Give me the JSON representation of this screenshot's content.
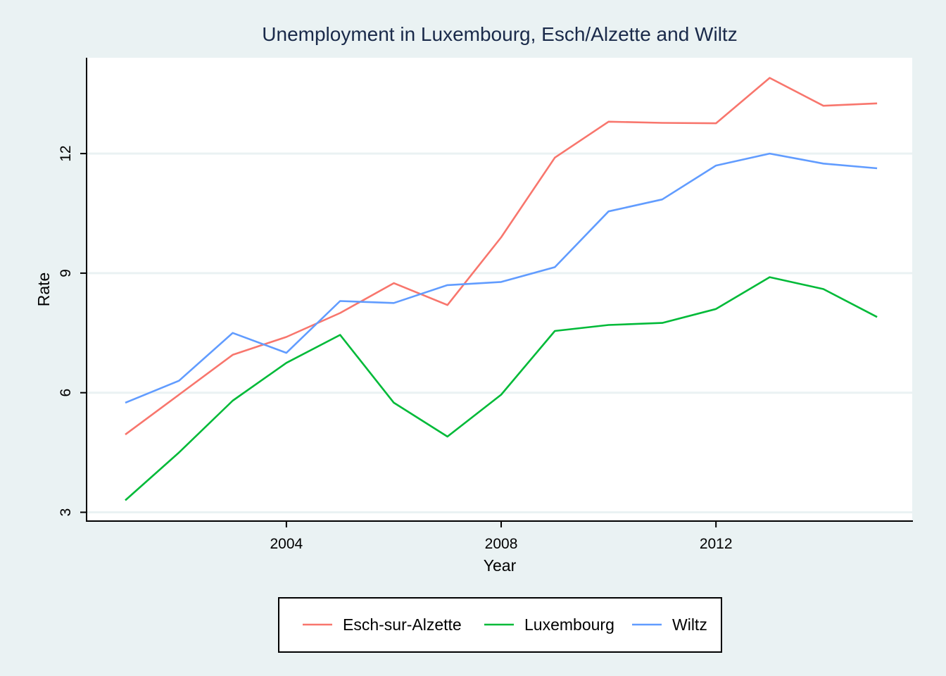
{
  "chart_data": {
    "type": "line",
    "title": "Unemployment in Luxembourg, Esch/Alzette and Wiltz",
    "xlabel": "Year",
    "ylabel": "Rate",
    "xlim": [
      2000.3,
      2015.7
    ],
    "ylim": [
      2.8,
      14.5
    ],
    "xticks": [
      2004,
      2008,
      2012
    ],
    "yticks": [
      3,
      6,
      9,
      12
    ],
    "grid": true,
    "legend_position": "bottom",
    "x": [
      2001,
      2002,
      2003,
      2004,
      2005,
      2006,
      2007,
      2008,
      2009,
      2010,
      2011,
      2012,
      2013,
      2014,
      2015
    ],
    "series": [
      {
        "name": "Esch-sur-Alzette",
        "color": "#f8766d",
        "values": [
          4.95,
          5.95,
          6.95,
          7.4,
          8.0,
          8.75,
          8.2,
          9.9,
          11.9,
          12.8,
          12.77,
          12.76,
          13.9,
          13.2,
          13.26
        ]
      },
      {
        "name": "Luxembourg",
        "color": "#00ba38",
        "values": [
          3.3,
          4.5,
          5.8,
          6.75,
          7.45,
          5.75,
          4.9,
          5.95,
          7.55,
          7.7,
          7.75,
          8.1,
          8.9,
          8.6,
          7.9
        ]
      },
      {
        "name": "Wiltz",
        "color": "#619cff",
        "values": [
          5.75,
          6.3,
          7.5,
          7.0,
          8.3,
          8.25,
          8.7,
          8.78,
          9.15,
          10.55,
          10.85,
          11.7,
          12.0,
          11.75,
          11.63
        ]
      }
    ]
  }
}
